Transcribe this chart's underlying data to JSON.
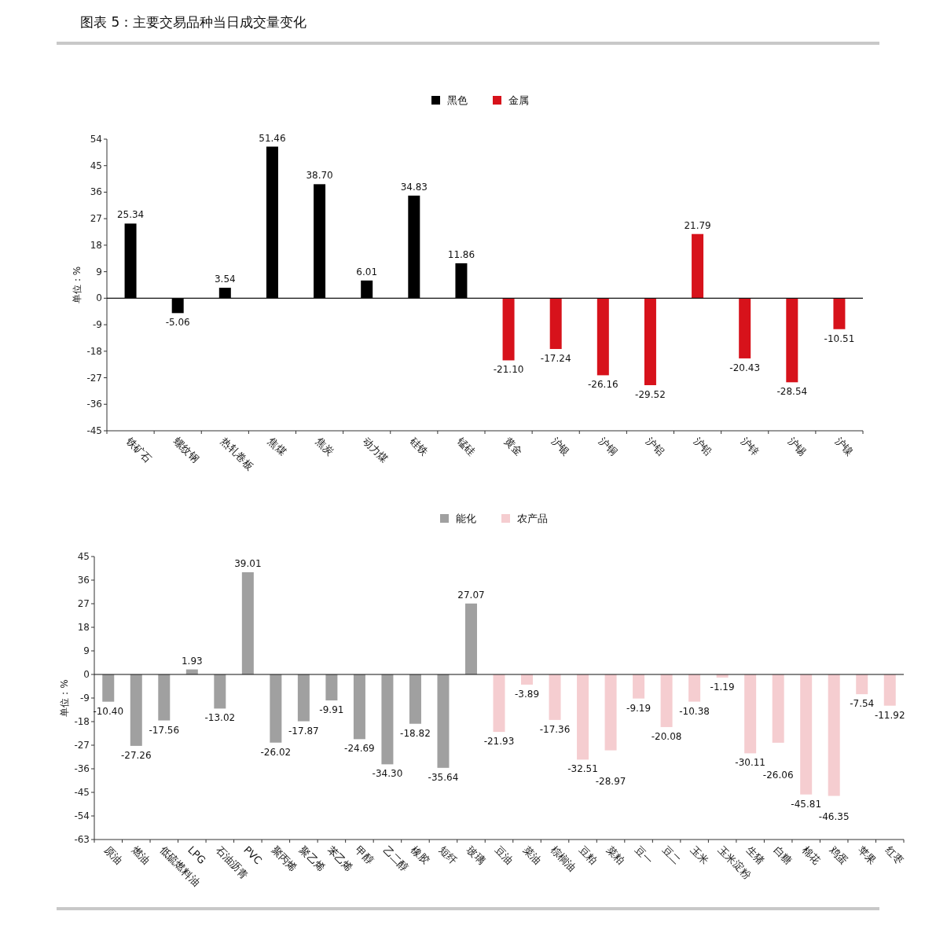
{
  "chart_data": [
    {
      "type": "bar",
      "title": "图表 5：主要交易品种当日成交量变化",
      "ylabel": "单位：%",
      "legend": "top",
      "ylim": [
        -45,
        54
      ],
      "yticks": [
        -45,
        -36,
        -27,
        -18,
        -9,
        0,
        9,
        18,
        27,
        36,
        45,
        54
      ],
      "categories": [
        "铁矿石",
        "螺纹钢",
        "热轧卷板",
        "焦煤",
        "焦炭",
        "动力煤",
        "硅铁",
        "锰硅",
        "黄金",
        "沪银",
        "沪铜",
        "沪铝",
        "沪铅",
        "沪锌",
        "沪锡",
        "沪镍"
      ],
      "series": [
        {
          "name": "黑色",
          "color": "#000000",
          "values": [
            25.34,
            -5.06,
            3.54,
            51.46,
            38.7,
            6.01,
            34.83,
            11.86,
            null,
            null,
            null,
            null,
            null,
            null,
            null,
            null
          ],
          "value_labels": [
            "25.34",
            "-5.06",
            "3.54",
            "51.46",
            "38.70",
            "6.01",
            "34.83",
            "11.86",
            null,
            null,
            null,
            null,
            null,
            null,
            null,
            null
          ]
        },
        {
          "name": "金属",
          "color": "#d7121b",
          "values": [
            null,
            null,
            null,
            null,
            null,
            null,
            null,
            null,
            -21.1,
            -17.24,
            -26.16,
            -29.52,
            21.79,
            -20.43,
            -28.54,
            -10.51
          ],
          "value_labels": [
            null,
            null,
            null,
            null,
            null,
            null,
            null,
            null,
            "-21.10",
            "-17.24",
            "-26.16",
            "-29.52",
            "21.79",
            "-20.43",
            "-28.54",
            "-10.51"
          ]
        }
      ]
    },
    {
      "type": "bar",
      "ylabel": "单位：%",
      "legend": "top",
      "ylim": [
        -63,
        45
      ],
      "yticks": [
        -63,
        -54,
        -45,
        -36,
        -27,
        -18,
        -9,
        0,
        9,
        18,
        27,
        36,
        45
      ],
      "categories": [
        "原油",
        "燃油",
        "低硫燃料油",
        "LPG",
        "石油沥青",
        "PVC",
        "聚丙烯",
        "聚乙烯",
        "苯乙烯",
        "甲醇",
        "乙二醇",
        "橡胶",
        "短纤",
        "玻璃",
        "豆油",
        "菜油",
        "棕榈油",
        "豆粕",
        "菜粕",
        "豆一",
        "豆二",
        "玉米",
        "玉米淀粉",
        "生猪",
        "白糖",
        "棉花",
        "鸡蛋",
        "苹果",
        "红枣"
      ],
      "series": [
        {
          "name": "能化",
          "color": "#a0a0a0",
          "values": [
            -10.4,
            -27.26,
            -17.56,
            1.93,
            -13.02,
            39.01,
            -26.02,
            -17.87,
            -9.91,
            -24.69,
            -34.3,
            -18.82,
            -35.64,
            27.07,
            null,
            null,
            null,
            null,
            null,
            null,
            null,
            null,
            null,
            null,
            null,
            null,
            null,
            null,
            null
          ],
          "value_labels": [
            "-10.40",
            "-27.26",
            "-17.56",
            "1.93",
            "-13.02",
            "39.01",
            "-26.02",
            "-17.87",
            "-9.91",
            "-24.69",
            "-34.30",
            "-18.82",
            "-35.64",
            "27.07",
            null,
            null,
            null,
            null,
            null,
            null,
            null,
            null,
            null,
            null,
            null,
            null,
            null,
            null,
            null
          ]
        },
        {
          "name": "农产品",
          "color": "#f5cdd0",
          "values": [
            null,
            null,
            null,
            null,
            null,
            null,
            null,
            null,
            null,
            null,
            null,
            null,
            null,
            null,
            -21.93,
            -3.89,
            -17.36,
            -32.51,
            -28.97,
            -9.19,
            -20.08,
            -10.38,
            -1.19,
            -30.11,
            -26.06,
            -45.81,
            -46.35,
            -7.54,
            -11.92
          ],
          "value_labels": [
            null,
            null,
            null,
            null,
            null,
            null,
            null,
            null,
            null,
            null,
            null,
            null,
            null,
            null,
            "-21.93",
            "-3.89",
            "-17.36",
            "-32.51",
            "-28.97",
            "-9.19",
            "-20.08",
            "-10.38",
            "-1.19",
            "-30.11",
            "-26.06",
            "-45.81",
            "-46.35",
            "-7.54",
            "-11.92"
          ]
        }
      ]
    }
  ]
}
